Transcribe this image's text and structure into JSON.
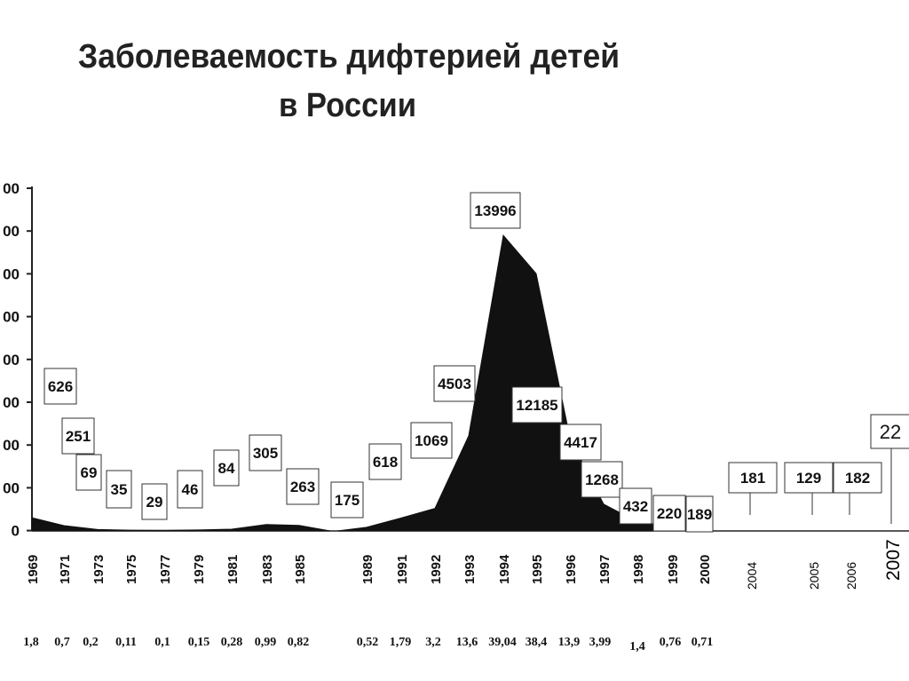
{
  "title_line1": "Заболеваемость дифтерией  детей",
  "title_line2": "в России",
  "chart_data": {
    "type": "area",
    "title": "Заболеваемость дифтерией детей в России",
    "y_ticks": [
      "00",
      "00",
      "00",
      "00",
      "00",
      "00",
      "00",
      "00",
      "0"
    ],
    "series_1969_1985": {
      "years": [
        "1969",
        "1971",
        "1973",
        "1975",
        "1977",
        "1979",
        "1981",
        "1983",
        "1985"
      ],
      "values": [
        626,
        251,
        69,
        35,
        29,
        46,
        84,
        305,
        263
      ],
      "rates": [
        "1,8",
        "0,7",
        "0,2",
        "0,11",
        "0,1",
        "0,15",
        "0,28",
        "0,99",
        "0,82"
      ]
    },
    "series_1989_2000": {
      "years": [
        "1989",
        "1991",
        "1992",
        "1993",
        "1994",
        "1995",
        "1996",
        "1997",
        "1998",
        "1999",
        "2000"
      ],
      "values": [
        175,
        618,
        1069,
        4503,
        13996,
        12185,
        4417,
        1268,
        432,
        220,
        189
      ],
      "rates": [
        "0,52",
        "1,79",
        "3,2",
        "13,6",
        "39,04",
        "38,4",
        "13,9",
        "3,99",
        "1,4",
        "0,76",
        "0,71"
      ]
    },
    "late_years": [
      {
        "year": "2004",
        "value": "181"
      },
      {
        "year": "2005",
        "value": "129"
      },
      {
        "year": "2006",
        "value": "182"
      },
      {
        "year": "2007",
        "value": "22"
      }
    ]
  }
}
